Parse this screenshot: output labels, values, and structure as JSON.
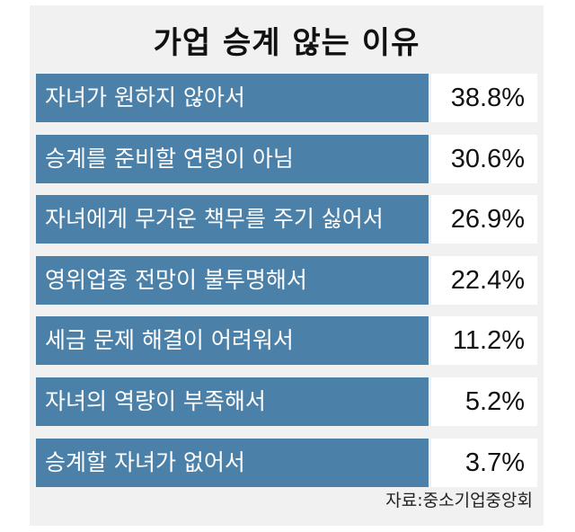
{
  "chart_data": {
    "type": "table",
    "title": "가업 승계 않는 이유",
    "categories": [
      "자녀가 원하지 않아서",
      "승계를 준비할 연령이 아님",
      "자녀에게 무거운 책무를 주기 싫어서",
      "영위업종 전망이 불투명해서",
      "세금 문제 해결이 어려워서",
      "자녀의 역량이 부족해서",
      "승계할 자녀가 없어서"
    ],
    "values": [
      38.8,
      30.6,
      26.9,
      22.4,
      11.2,
      5.2,
      3.7
    ],
    "value_labels": [
      "38.8%",
      "30.6%",
      "26.9%",
      "22.4%",
      "11.2%",
      "5.2%",
      "3.7%"
    ],
    "source": "자료:중소기업중앙회",
    "colors": {
      "bar": "#4b80a8",
      "background": "#f1f1f1"
    }
  }
}
